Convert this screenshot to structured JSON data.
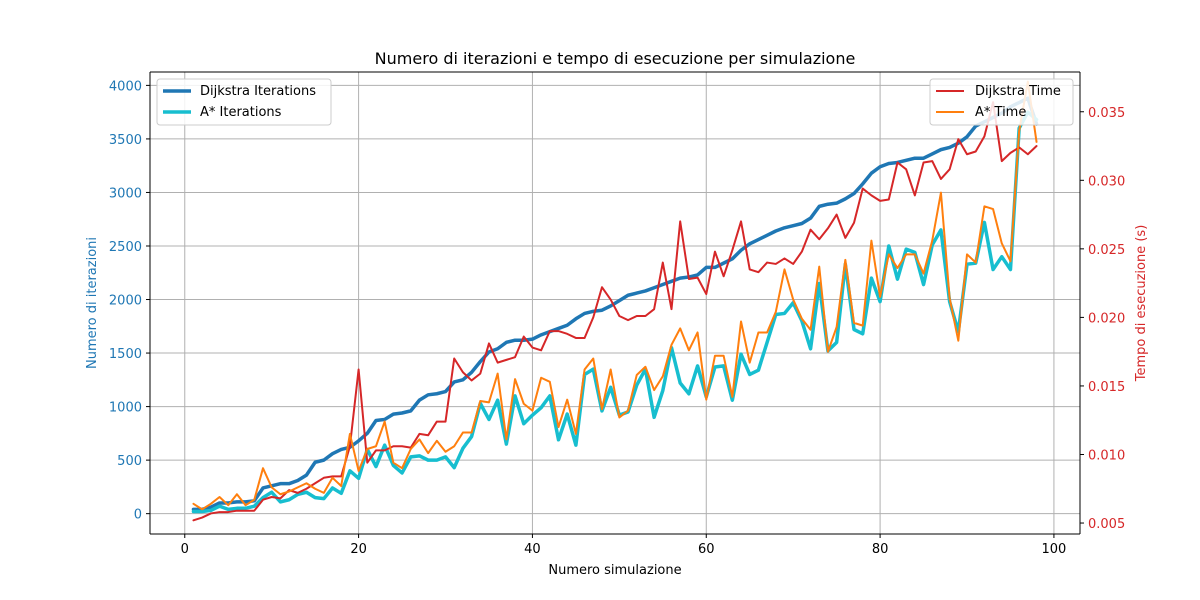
{
  "chart_data": {
    "type": "line",
    "title": "Numero di iterazioni e tempo di esecuzione per simulazione",
    "xlabel": "Numero simulazione",
    "ylabel_left": "Numero di iterazioni",
    "ylabel_right": "Tempo di esecuzione (s)",
    "xlim": [
      -4,
      103
    ],
    "ylim_left": [
      -190,
      4125
    ],
    "ylim_right": [
      0.0042,
      0.0379
    ],
    "xticks": [
      "0",
      "20",
      "40",
      "60",
      "80",
      "100"
    ],
    "yticks_left": [
      "0",
      "500",
      "1000",
      "1500",
      "2000",
      "2500",
      "3000",
      "3500",
      "4000"
    ],
    "yticks_right": [
      "0.005",
      "0.010",
      "0.015",
      "0.020",
      "0.025",
      "0.030",
      "0.035"
    ],
    "grid": true,
    "colors": {
      "dijkstra_iterations": "#1f77b4",
      "astar_iterations": "#17becf",
      "dijkstra_time": "#d62728",
      "astar_time": "#ff7f0e",
      "left_axis": "#1f77b4",
      "right_axis": "#d62728"
    },
    "legend_left": {
      "placement": "upper-left",
      "entries": [
        "Dijkstra Iterations",
        "A* Iterations"
      ]
    },
    "legend_right": {
      "placement": "upper-right",
      "entries": [
        "Dijkstra Time",
        "A* Time"
      ]
    },
    "x": [
      1,
      2,
      3,
      4,
      5,
      6,
      7,
      8,
      9,
      10,
      11,
      12,
      13,
      14,
      15,
      16,
      17,
      18,
      19,
      20,
      21,
      22,
      23,
      24,
      25,
      26,
      27,
      28,
      29,
      30,
      31,
      32,
      33,
      34,
      35,
      36,
      37,
      38,
      39,
      40,
      41,
      42,
      43,
      44,
      45,
      46,
      47,
      48,
      49,
      50,
      51,
      52,
      53,
      54,
      55,
      56,
      57,
      58,
      59,
      60,
      61,
      62,
      63,
      64,
      65,
      66,
      67,
      68,
      69,
      70,
      71,
      72,
      73,
      74,
      75,
      76,
      77,
      78,
      79,
      80,
      81,
      82,
      83,
      84,
      85,
      86,
      87,
      88,
      89,
      90,
      91,
      92,
      93,
      94,
      95,
      96,
      97,
      98
    ],
    "series": [
      {
        "name": "Dijkstra Iterations",
        "axis": "left",
        "values": [
          40,
          40,
          60,
          100,
          100,
          110,
          110,
          120,
          240,
          260,
          280,
          280,
          310,
          360,
          480,
          500,
          560,
          600,
          620,
          680,
          750,
          870,
          880,
          930,
          940,
          960,
          1060,
          1110,
          1120,
          1140,
          1230,
          1250,
          1320,
          1420,
          1510,
          1540,
          1600,
          1620,
          1620,
          1630,
          1670,
          1700,
          1730,
          1760,
          1820,
          1870,
          1890,
          1900,
          1940,
          1990,
          2040,
          2060,
          2080,
          2110,
          2140,
          2170,
          2200,
          2210,
          2230,
          2300,
          2300,
          2340,
          2380,
          2460,
          2520,
          2560,
          2600,
          2640,
          2670,
          2690,
          2710,
          2760,
          2870,
          2890,
          2900,
          2940,
          2990,
          3080,
          3180,
          3240,
          3270,
          3280,
          3300,
          3320,
          3320,
          3360,
          3400,
          3420,
          3460,
          3520,
          3620,
          3660,
          3700,
          3740,
          3800,
          3840,
          3880,
          3640
        ]
      },
      {
        "name": "A* Iterations",
        "axis": "left",
        "values": [
          20,
          20,
          30,
          70,
          40,
          50,
          50,
          70,
          150,
          200,
          110,
          130,
          180,
          200,
          150,
          140,
          240,
          190,
          400,
          330,
          600,
          440,
          640,
          450,
          380,
          530,
          540,
          500,
          500,
          530,
          430,
          610,
          720,
          1030,
          880,
          1060,
          650,
          1100,
          840,
          920,
          990,
          1100,
          690,
          930,
          640,
          1300,
          1350,
          960,
          1180,
          920,
          950,
          1200,
          1350,
          900,
          1150,
          1550,
          1220,
          1120,
          1380,
          1090,
          1370,
          1380,
          1060,
          1490,
          1300,
          1340,
          1600,
          1860,
          1870,
          1970,
          1800,
          1540,
          2150,
          1520,
          1600,
          2330,
          1720,
          1680,
          2200,
          1980,
          2500,
          2190,
          2470,
          2440,
          2140,
          2510,
          2650,
          1980,
          1700,
          2330,
          2340,
          2720,
          2280,
          2400,
          2280,
          3600,
          3750,
          3680
        ]
      },
      {
        "name": "Dijkstra Time",
        "axis": "right",
        "values": [
          0.0052,
          0.0054,
          0.0057,
          0.0058,
          0.0058,
          0.0059,
          0.0059,
          0.0059,
          0.0067,
          0.0069,
          0.0068,
          0.0074,
          0.0072,
          0.0075,
          0.0079,
          0.0083,
          0.0084,
          0.0084,
          0.0106,
          0.0162,
          0.0094,
          0.0103,
          0.0103,
          0.0106,
          0.0106,
          0.0105,
          0.0115,
          0.0114,
          0.0124,
          0.0124,
          0.017,
          0.016,
          0.0154,
          0.0159,
          0.0181,
          0.0167,
          0.0169,
          0.0171,
          0.0186,
          0.0178,
          0.0176,
          0.019,
          0.019,
          0.0188,
          0.0185,
          0.0185,
          0.02,
          0.0222,
          0.0213,
          0.0201,
          0.0198,
          0.0201,
          0.0201,
          0.0206,
          0.024,
          0.0206,
          0.027,
          0.0228,
          0.0229,
          0.0217,
          0.0248,
          0.023,
          0.0249,
          0.027,
          0.0235,
          0.0233,
          0.024,
          0.0239,
          0.0243,
          0.0239,
          0.0248,
          0.0264,
          0.0257,
          0.0265,
          0.0275,
          0.0258,
          0.0269,
          0.0294,
          0.0289,
          0.0285,
          0.0286,
          0.0313,
          0.0308,
          0.0289,
          0.0313,
          0.0314,
          0.0301,
          0.0308,
          0.033,
          0.0319,
          0.0321,
          0.0332,
          0.0357,
          0.0314,
          0.032,
          0.0324,
          0.0319,
          0.0325
        ]
      },
      {
        "name": "A* Time",
        "axis": "right",
        "values": [
          0.0064,
          0.006,
          0.0064,
          0.0069,
          0.0063,
          0.0071,
          0.0063,
          0.0067,
          0.009,
          0.0076,
          0.0071,
          0.0073,
          0.0076,
          0.0079,
          0.0075,
          0.0072,
          0.0083,
          0.0077,
          0.0115,
          0.0088,
          0.0104,
          0.0106,
          0.0124,
          0.0094,
          0.009,
          0.0104,
          0.0111,
          0.0101,
          0.011,
          0.0102,
          0.0106,
          0.0116,
          0.0116,
          0.0139,
          0.0138,
          0.0159,
          0.0111,
          0.0155,
          0.0137,
          0.0132,
          0.0156,
          0.0153,
          0.012,
          0.014,
          0.0115,
          0.0162,
          0.017,
          0.0133,
          0.0162,
          0.0127,
          0.0132,
          0.0158,
          0.0164,
          0.0147,
          0.0157,
          0.018,
          0.0192,
          0.0176,
          0.0189,
          0.014,
          0.0172,
          0.0172,
          0.0142,
          0.0197,
          0.0167,
          0.0189,
          0.0189,
          0.0204,
          0.0235,
          0.0213,
          0.0199,
          0.0191,
          0.0237,
          0.0175,
          0.0193,
          0.0242,
          0.0196,
          0.0194,
          0.0256,
          0.0215,
          0.0246,
          0.0236,
          0.0246,
          0.0246,
          0.0232,
          0.0256,
          0.0291,
          0.0214,
          0.0183,
          0.0246,
          0.024,
          0.0281,
          0.0279,
          0.0254,
          0.0241,
          0.0336,
          0.0372,
          0.0328
        ]
      }
    ]
  }
}
